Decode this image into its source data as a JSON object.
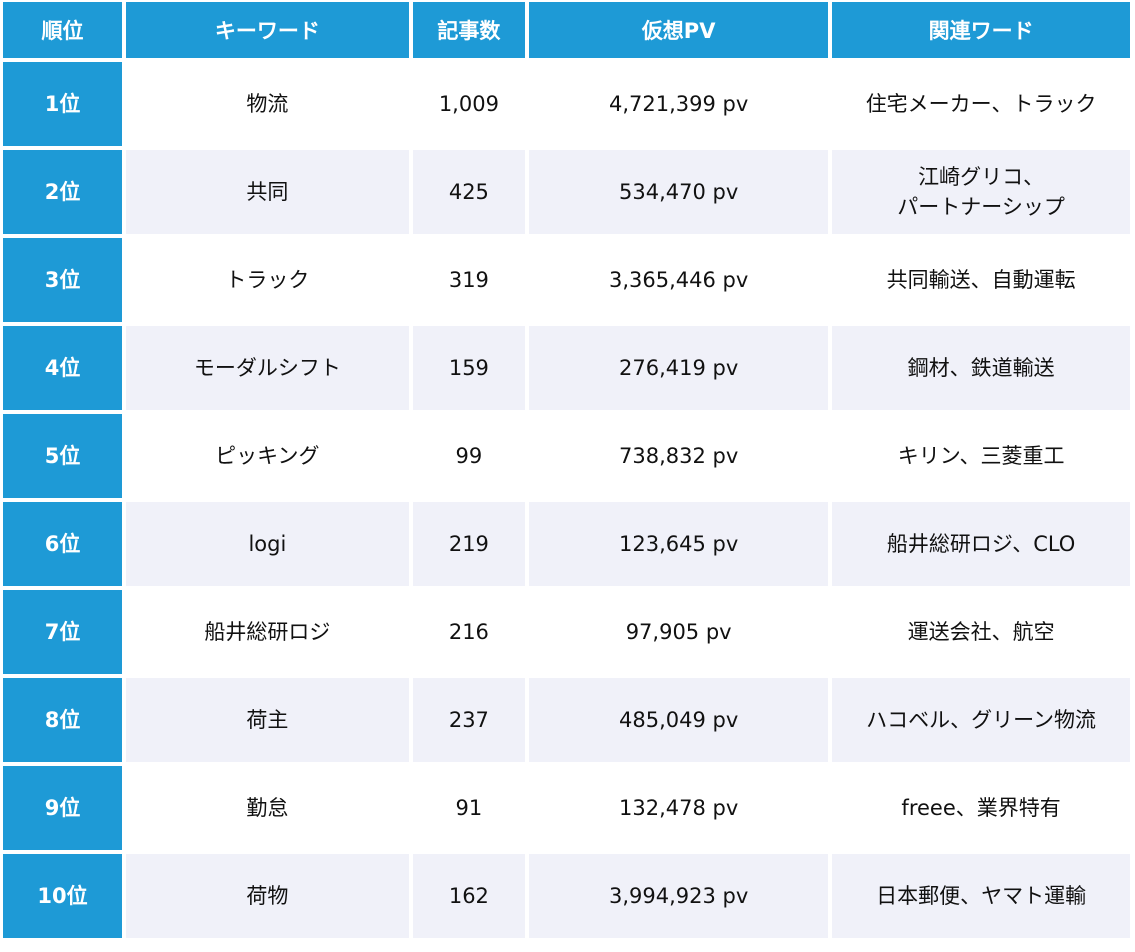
{
  "headers": [
    "順位",
    "キーワード",
    "記事数",
    "仮想PV",
    "関連ワード"
  ],
  "colors": {
    "header_bg": "#1e9ad6",
    "header_text": "#ffffff",
    "row_alt_bg": "#f0f1f9"
  },
  "rows": [
    {
      "rank": "1位",
      "keyword": "物流",
      "articles": "1,009",
      "pv": "4,721,399 pv",
      "related": "住宅メーカー、トラック"
    },
    {
      "rank": "2位",
      "keyword": "共同",
      "articles": "425",
      "pv": "534,470 pv",
      "related": "江崎グリコ、\nパートナーシップ"
    },
    {
      "rank": "3位",
      "keyword": "トラック",
      "articles": "319",
      "pv": "3,365,446 pv",
      "related": "共同輸送、自動運転"
    },
    {
      "rank": "4位",
      "keyword": "モーダルシフト",
      "articles": "159",
      "pv": "276,419 pv",
      "related": "鋼材、鉄道輸送"
    },
    {
      "rank": "5位",
      "keyword": "ピッキング",
      "articles": "99",
      "pv": "738,832 pv",
      "related": "キリン、三菱重工"
    },
    {
      "rank": "6位",
      "keyword": "logi",
      "articles": "219",
      "pv": "123,645 pv",
      "related": "船井総研ロジ、CLO"
    },
    {
      "rank": "7位",
      "keyword": "船井総研ロジ",
      "articles": "216",
      "pv": "97,905 pv",
      "related": "運送会社、航空"
    },
    {
      "rank": "8位",
      "keyword": "荷主",
      "articles": "237",
      "pv": "485,049 pv",
      "related": "ハコベル、グリーン物流"
    },
    {
      "rank": "9位",
      "keyword": "勤怠",
      "articles": "91",
      "pv": "132,478 pv",
      "related": "freee、業界特有"
    },
    {
      "rank": "10位",
      "keyword": "荷物",
      "articles": "162",
      "pv": "3,994,923 pv",
      "related": "日本郵便、ヤマト運輸"
    }
  ]
}
